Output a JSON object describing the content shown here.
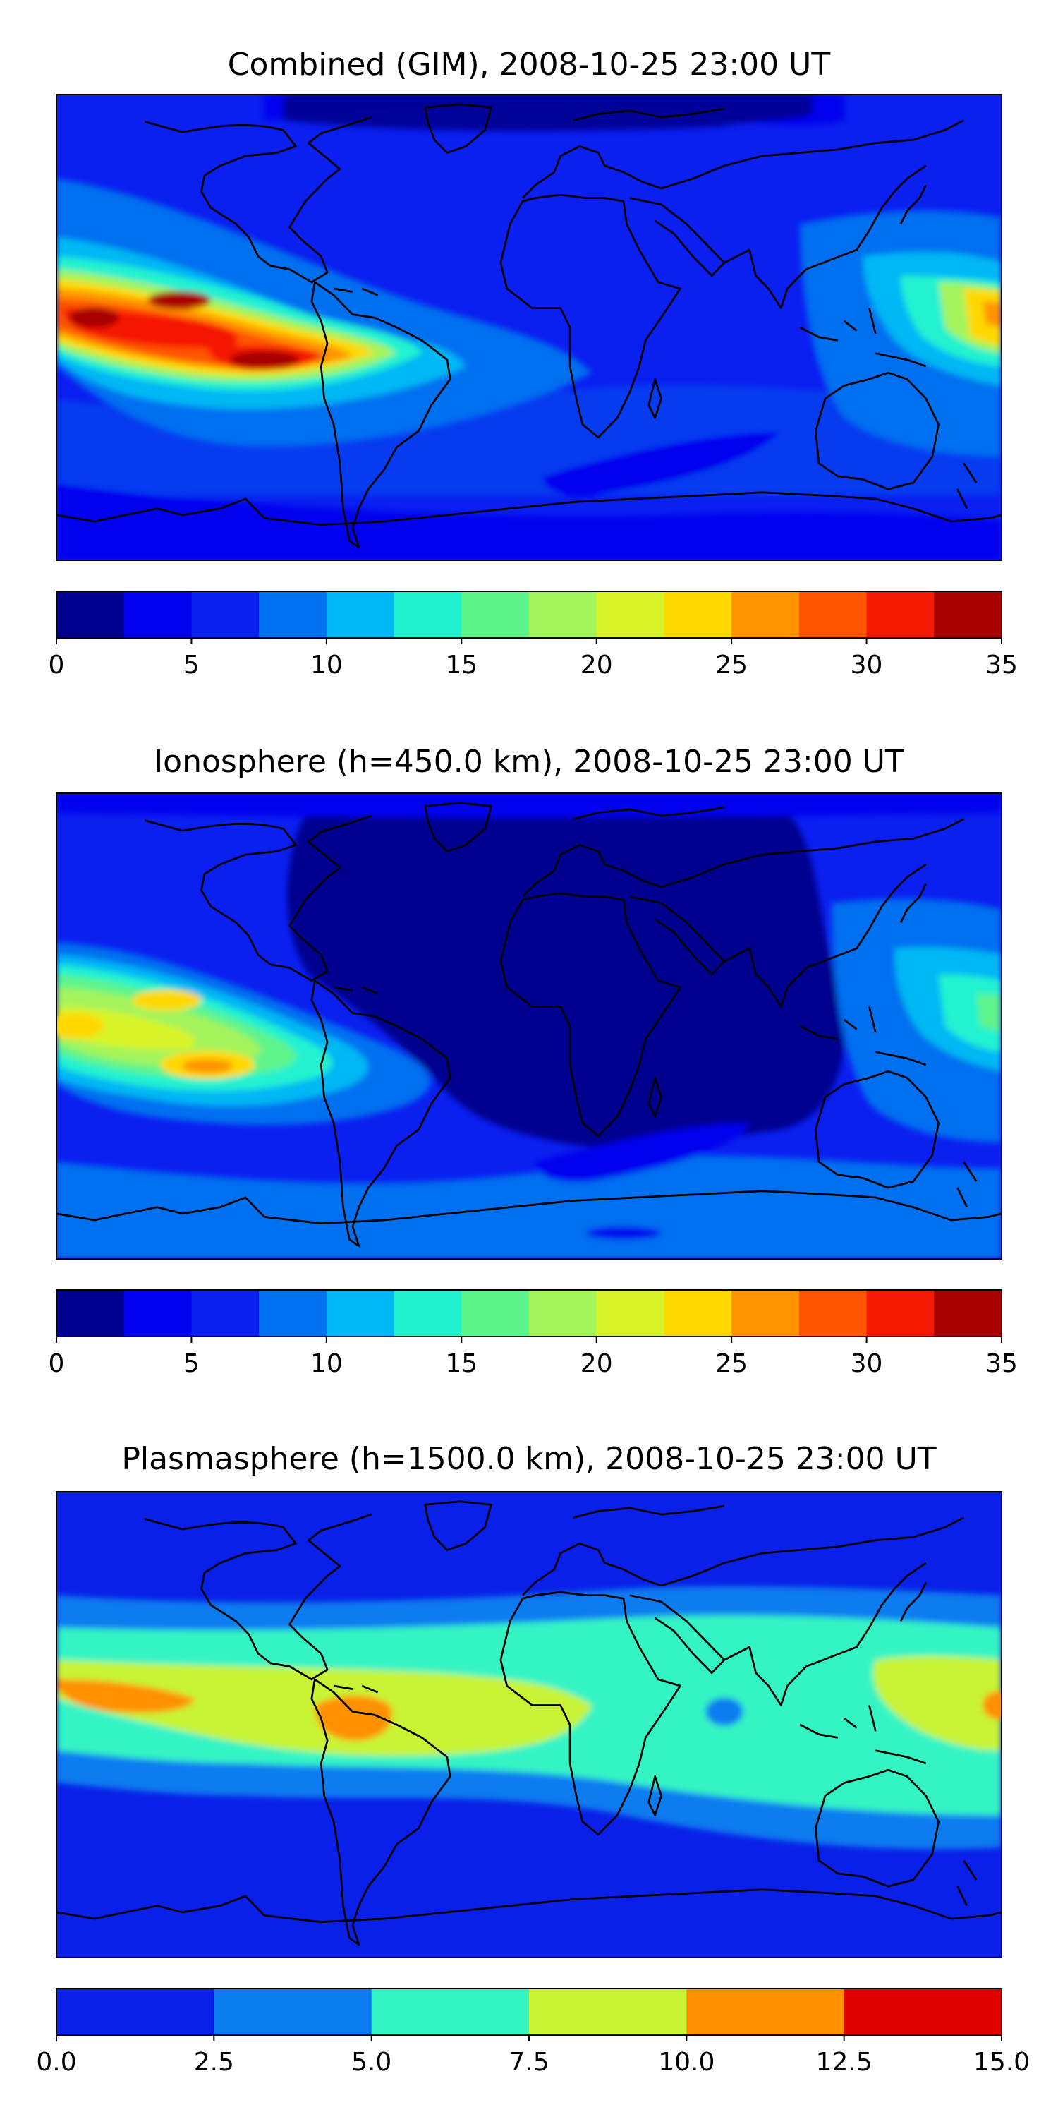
{
  "panels": [
    {
      "id": "combined",
      "title": "Combined (GIM), 2008-10-25 23:00 UT",
      "colorbar": {
        "ticks": [
          "0",
          "5",
          "10",
          "15",
          "20",
          "25",
          "30",
          "35"
        ],
        "levels": [
          0,
          2.5,
          5,
          7.5,
          10,
          12.5,
          15,
          17.5,
          20,
          22.5,
          25,
          27.5,
          30,
          32.5,
          35
        ],
        "colors": [
          "#00008f",
          "#0000ee",
          "#0a1ff0",
          "#0070f0",
          "#00b8f4",
          "#20f2d0",
          "#5ef48c",
          "#a4f45c",
          "#d8f428",
          "#ffd800",
          "#ff9400",
          "#ff5400",
          "#f51800",
          "#a80000"
        ]
      },
      "regions": [
        {
          "name": "south-pacific-anomaly",
          "value": 27
        },
        {
          "name": "east-pacific-peak",
          "value": 34
        },
        {
          "name": "west-pacific-anomaly",
          "value": 25
        },
        {
          "name": "southern-ocean-minimum",
          "value": 3
        }
      ]
    },
    {
      "id": "ionosphere",
      "title": "Ionosphere  (h=450.0 km), 2008-10-25 23:00 UT",
      "colorbar": {
        "ticks": [
          "0",
          "5",
          "10",
          "15",
          "20",
          "25",
          "30",
          "35"
        ],
        "levels": [
          0,
          2.5,
          5,
          7.5,
          10,
          12.5,
          15,
          17.5,
          20,
          22.5,
          25,
          27.5,
          30,
          32.5,
          35
        ],
        "colors": [
          "#00008f",
          "#0000ee",
          "#0a1ff0",
          "#0070f0",
          "#00b8f4",
          "#20f2d0",
          "#5ef48c",
          "#a4f45c",
          "#d8f428",
          "#ffd800",
          "#ff9400",
          "#ff5400",
          "#f51800",
          "#a80000"
        ]
      },
      "regions": [
        {
          "name": "south-pacific-anomaly",
          "value": 22
        },
        {
          "name": "east-pacific-peak",
          "value": 26
        },
        {
          "name": "atlantic-africa-minimum",
          "value": 1
        }
      ]
    },
    {
      "id": "plasmasphere",
      "title": "Plasmasphere (h=1500.0 km), 2008-10-25 23:00 UT",
      "colorbar": {
        "ticks": [
          "0.0",
          "2.5",
          "5.0",
          "7.5",
          "10.0",
          "12.5",
          "15.0"
        ],
        "levels": [
          0,
          2.5,
          5,
          7.5,
          10,
          12.5,
          15
        ],
        "colors": [
          "#0a1fe8",
          "#0a7cf0",
          "#34f4c4",
          "#c8f434",
          "#ff9000",
          "#e00000"
        ]
      },
      "regions": [
        {
          "name": "equatorial-band",
          "value": 8
        },
        {
          "name": "south-america-maximum",
          "value": 11
        },
        {
          "name": "polar-minimum",
          "value": 1
        }
      ]
    }
  ]
}
